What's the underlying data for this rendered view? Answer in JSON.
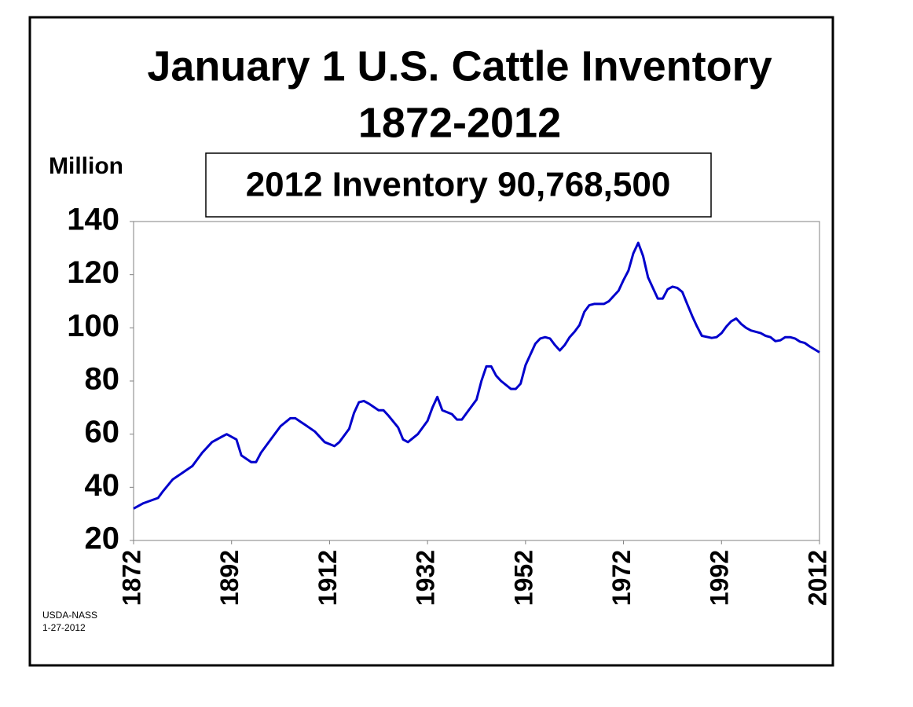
{
  "chart_data": {
    "type": "line",
    "title": "January 1 U.S. Cattle Inventory",
    "subtitle": "1872-2012",
    "y_label": "Million",
    "annotation": "2012 Inventory 90,768,500",
    "source": [
      "USDA-NASS",
      "1-27-2012"
    ],
    "x": [
      1872,
      1874,
      1877,
      1878,
      1880,
      1882,
      1884,
      1886,
      1888,
      1890,
      1891,
      1893,
      1894,
      1896,
      1897,
      1898,
      1900,
      1902,
      1904,
      1905,
      1907,
      1909,
      1911,
      1913,
      1914,
      1916,
      1917,
      1918,
      1919,
      1920,
      1922,
      1923,
      1924,
      1926,
      1927,
      1928,
      1930,
      1932,
      1933,
      1934,
      1935,
      1937,
      1938,
      1939,
      1940,
      1942,
      1943,
      1944,
      1945,
      1946,
      1947,
      1949,
      1950,
      1951,
      1952,
      1954,
      1955,
      1956,
      1957,
      1958,
      1959,
      1960,
      1961,
      1962,
      1963,
      1964,
      1965,
      1966,
      1968,
      1969,
      1971,
      1972,
      1973,
      1974,
      1975,
      1976,
      1977,
      1979,
      1980,
      1981,
      1982,
      1983,
      1984,
      1985,
      1986,
      1987,
      1988,
      1990,
      1991,
      1992,
      1993,
      1994,
      1995,
      1996,
      1997,
      1998,
      2000,
      2001,
      2002,
      2003,
      2004,
      2005,
      2006,
      2007,
      2008,
      2009,
      2010,
      2012
    ],
    "series": [
      {
        "name": "Inventory",
        "color": "#0000cc",
        "values": [
          32,
          34,
          36,
          38.5,
          43,
          45.5,
          48,
          53,
          57,
          59,
          60,
          58,
          52,
          49.5,
          49.5,
          53,
          58,
          63,
          66,
          66,
          63.5,
          61,
          57,
          55.5,
          57,
          62,
          68,
          72,
          72.5,
          71.5,
          69,
          69,
          67,
          62.5,
          58,
          57,
          60,
          65,
          70,
          74,
          69,
          67.5,
          65.5,
          65.5,
          68,
          73,
          80,
          85.5,
          85.5,
          82,
          80,
          77,
          77,
          79,
          86,
          94,
          96,
          96.5,
          96,
          93.5,
          91.5,
          93.5,
          96.5,
          98.5,
          101,
          106,
          108.5,
          109,
          109,
          110,
          114,
          118,
          121.5,
          128,
          132,
          127,
          119,
          111,
          111,
          114.5,
          115.5,
          115,
          113.5,
          109,
          104.5,
          100.5,
          97,
          96.2,
          96.5,
          98,
          100.5,
          102.5,
          103.5,
          101.5,
          100,
          99,
          98,
          97,
          96.5,
          95,
          95.3,
          96.5,
          96.5,
          96,
          94.8,
          94.3,
          93,
          90.8
        ]
      }
    ],
    "xlim": [
      1872,
      2012
    ],
    "xticks": [
      1872,
      1892,
      1912,
      1932,
      1952,
      1972,
      1992,
      2012
    ],
    "ylim": [
      20,
      140
    ],
    "yticks": [
      20,
      40,
      60,
      80,
      100,
      120,
      140
    ],
    "grid": false
  }
}
